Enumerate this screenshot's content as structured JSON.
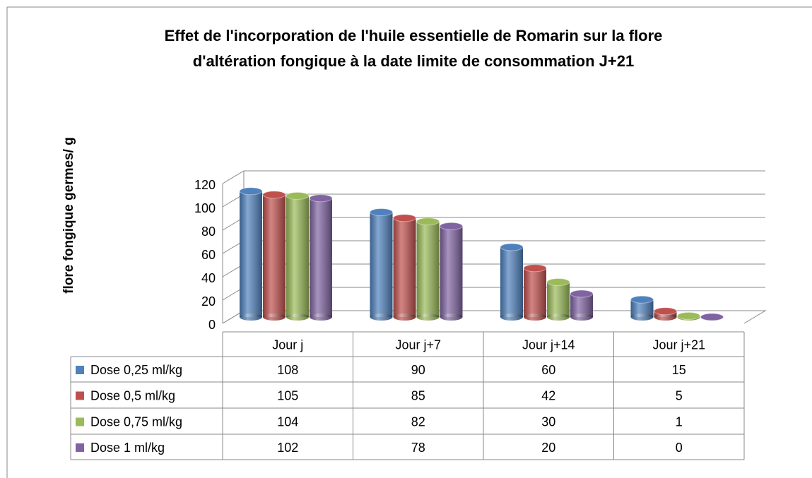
{
  "chart_data": {
    "type": "bar3d",
    "title": "Effet de l'incorporation de l'huile essentielle de Romarin sur la flore d'altération fongique à la date limite de consommation J+21",
    "y_label": "flore fongique germes/ g",
    "categories": [
      "Jour j",
      "Jour j+7",
      "Jour j+14",
      "Jour j+21"
    ],
    "series": [
      {
        "name": "Dose 0,25 ml/kg",
        "color": "#4f81bd",
        "values": [
          108,
          90,
          60,
          15
        ]
      },
      {
        "name": "Dose 0,5 ml/kg",
        "color": "#c0504d",
        "values": [
          105,
          85,
          42,
          5
        ]
      },
      {
        "name": "Dose 0,75 ml/kg",
        "color": "#9bbb59",
        "values": [
          104,
          82,
          30,
          1
        ]
      },
      {
        "name": "Dose 1 ml/kg",
        "color": "#8064a2",
        "values": [
          102,
          78,
          20,
          0
        ]
      }
    ],
    "ylim": [
      0,
      120
    ],
    "yticks": [
      0,
      20,
      40,
      60,
      80,
      100,
      120
    ],
    "grid": true,
    "data_table": true
  }
}
